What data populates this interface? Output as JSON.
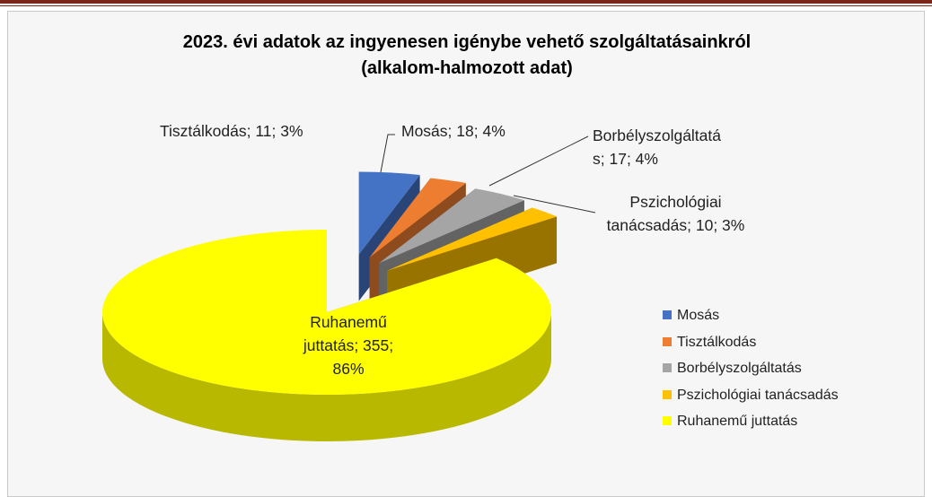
{
  "chart_data": {
    "type": "pie",
    "title": [
      "2023. évi adatok az ingyenesen igénybe vehető szolgáltatásainkról",
      "(alkalom-halmozott adat)"
    ],
    "categories": [
      "Mosás",
      "Tisztálkodás",
      "Borbélyszolgáltatás",
      "Pszichológiai tanácsadás",
      "Ruhanemű juttatás"
    ],
    "values": [
      18,
      11,
      17,
      10,
      355
    ],
    "value_labels": [
      "Mosás; 18; 4%",
      "Tisztálkodás; 11; 3%",
      "Borbélyszolgáltatás; 17; 4%",
      "Pszichológiai tanácsadás; 10; 3%",
      "Ruhanemű juttatás; 355; 86%"
    ],
    "colors": [
      "#4472c4",
      "#ed7d31",
      "#a5a5a5",
      "#ffc000",
      "#ffff00"
    ],
    "legend": "right"
  }
}
